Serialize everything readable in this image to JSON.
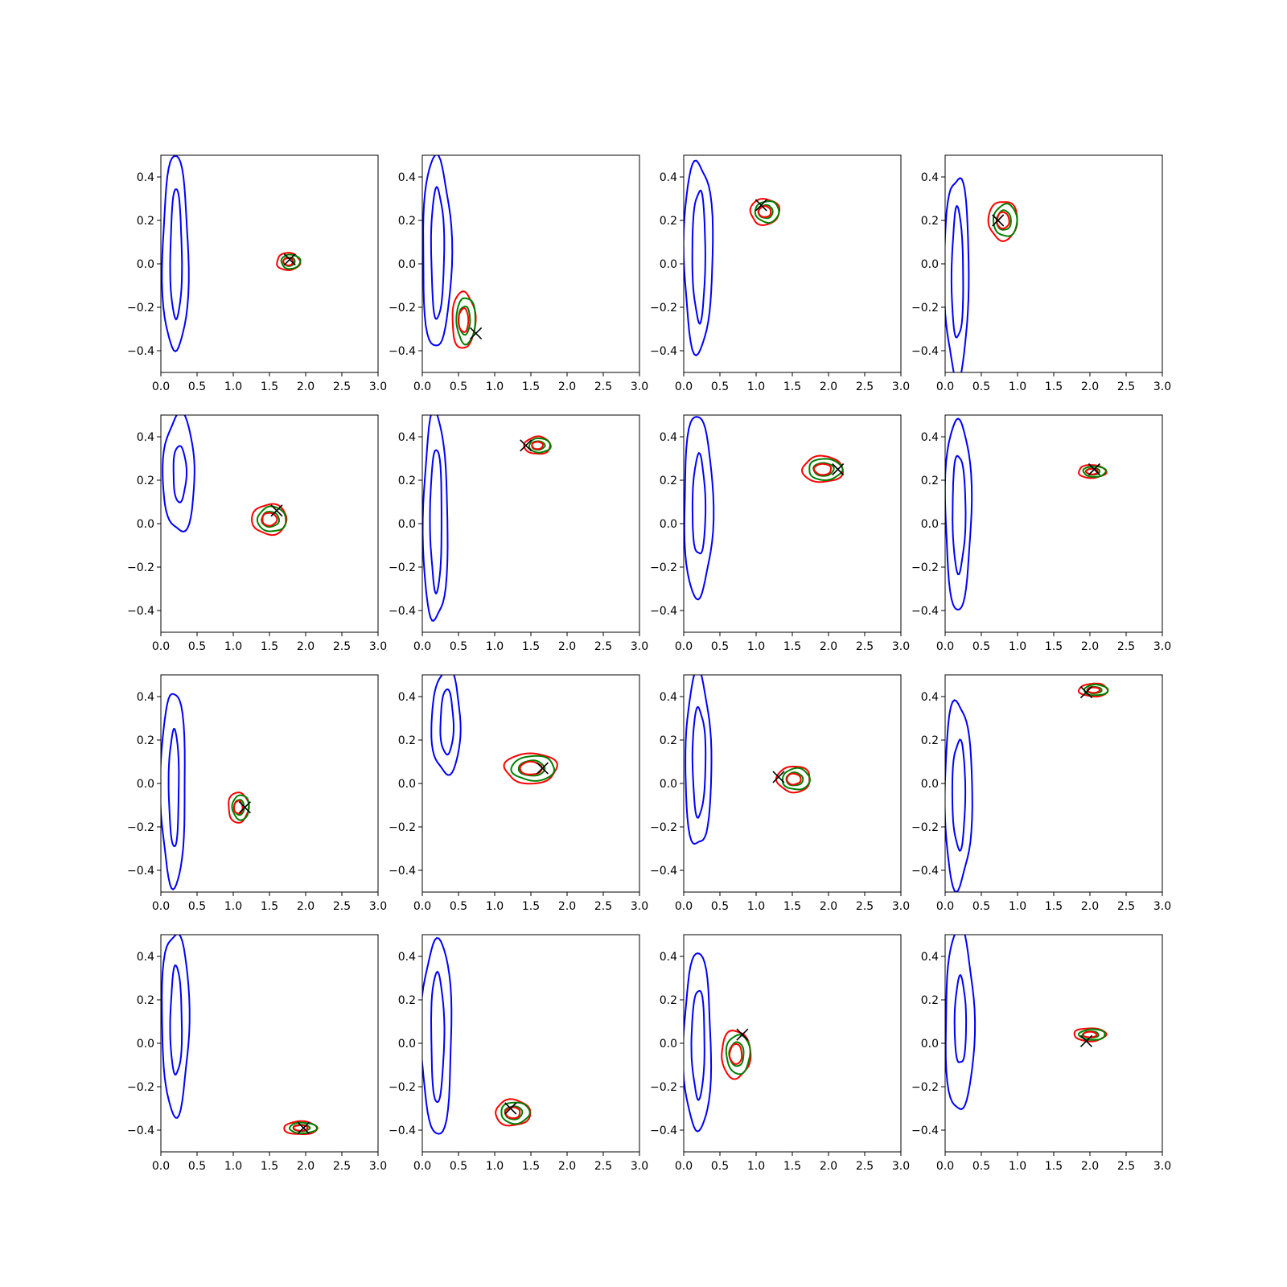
{
  "figure": {
    "rows": 4,
    "cols": 4
  },
  "colors": {
    "prior": "#0000ff",
    "posterior_a": "#008000",
    "posterior_b": "#ff0000",
    "truth_marker": "#000000",
    "axes": "#000000"
  },
  "legend": "none",
  "chart_data": [
    {
      "type": "contour",
      "xlim": [
        0,
        3
      ],
      "ylim": [
        -0.5,
        0.5
      ],
      "xticks": [
        "0.0",
        "0.5",
        "1.0",
        "1.5",
        "2.0",
        "2.5",
        "3.0"
      ],
      "yticks": [
        "0.4",
        "0.2",
        "0.0",
        "−0.2",
        "−0.4"
      ],
      "grid": false,
      "prior": {
        "cx": 0.2,
        "cy": 0.04,
        "outer": [
          0.18,
          0.45
        ],
        "inner": [
          0.08,
          0.3
        ]
      },
      "posterior": {
        "cx": 1.76,
        "cy": 0.01,
        "rx": 0.16,
        "ry": 0.04
      },
      "truth": [
        1.78,
        0.02
      ]
    },
    {
      "type": "contour",
      "xlim": [
        0,
        3
      ],
      "ylim": [
        -0.5,
        0.5
      ],
      "xticks": [
        "0.0",
        "0.5",
        "1.0",
        "1.5",
        "2.0",
        "2.5",
        "3.0"
      ],
      "yticks": [
        "0.4",
        "0.2",
        "0.0",
        "−0.2",
        "−0.4"
      ],
      "grid": false,
      "prior": {
        "cx": 0.2,
        "cy": 0.05,
        "outer": [
          0.2,
          0.44
        ],
        "inner": [
          0.09,
          0.3
        ]
      },
      "posterior": {
        "cx": 0.57,
        "cy": -0.26,
        "rx": 0.16,
        "ry": 0.13
      },
      "truth": [
        0.74,
        -0.32
      ]
    },
    {
      "type": "contour",
      "xlim": [
        0,
        3
      ],
      "ylim": [
        -0.5,
        0.5
      ],
      "xticks": [
        "0.0",
        "0.5",
        "1.0",
        "1.5",
        "2.0",
        "2.5",
        "3.0"
      ],
      "yticks": [
        "0.4",
        "0.2",
        "0.0",
        "−0.2",
        "−0.4"
      ],
      "grid": false,
      "prior": {
        "cx": 0.2,
        "cy": 0.04,
        "outer": [
          0.2,
          0.44
        ],
        "inner": [
          0.09,
          0.3
        ]
      },
      "posterior": {
        "cx": 1.12,
        "cy": 0.24,
        "rx": 0.2,
        "ry": 0.06
      },
      "truth": [
        1.07,
        0.27
      ]
    },
    {
      "type": "contour",
      "xlim": [
        0,
        3
      ],
      "ylim": [
        -0.5,
        0.5
      ],
      "xticks": [
        "0.0",
        "0.5",
        "1.0",
        "1.5",
        "2.0",
        "2.5",
        "3.0"
      ],
      "yticks": [
        "0.4",
        "0.2",
        "0.0",
        "−0.2",
        "−0.4"
      ],
      "grid": false,
      "prior": {
        "cx": 0.16,
        "cy": -0.05,
        "outer": [
          0.17,
          0.46
        ],
        "inner": [
          0.08,
          0.3
        ]
      },
      "posterior": {
        "cx": 0.8,
        "cy": 0.2,
        "rx": 0.2,
        "ry": 0.09
      },
      "truth": [
        0.73,
        0.2
      ]
    },
    {
      "type": "contour",
      "xlim": [
        0,
        3
      ],
      "ylim": [
        -0.5,
        0.5
      ],
      "xticks": [
        "0.0",
        "0.5",
        "1.0",
        "1.5",
        "2.0",
        "2.5",
        "3.0"
      ],
      "yticks": [
        "0.4",
        "0.2",
        "0.0",
        "−0.2",
        "−0.4"
      ],
      "grid": false,
      "prior": {
        "cx": 0.25,
        "cy": 0.23,
        "outer": [
          0.22,
          0.27
        ],
        "inner": [
          0.09,
          0.13
        ]
      },
      "posterior": {
        "cx": 1.5,
        "cy": 0.02,
        "rx": 0.24,
        "ry": 0.07
      },
      "truth": [
        1.6,
        0.06
      ]
    },
    {
      "type": "contour",
      "xlim": [
        0,
        3
      ],
      "ylim": [
        -0.5,
        0.5
      ],
      "xticks": [
        "0.0",
        "0.5",
        "1.0",
        "1.5",
        "2.0",
        "2.5",
        "3.0"
      ],
      "yticks": [
        "0.4",
        "0.2",
        "0.0",
        "−0.2",
        "−0.4"
      ],
      "grid": false,
      "prior": {
        "cx": 0.18,
        "cy": 0.02,
        "outer": [
          0.17,
          0.48
        ],
        "inner": [
          0.08,
          0.33
        ]
      },
      "posterior": {
        "cx": 1.59,
        "cy": 0.36,
        "rx": 0.18,
        "ry": 0.04
      },
      "truth": [
        1.43,
        0.36
      ]
    },
    {
      "type": "contour",
      "xlim": [
        0,
        3
      ],
      "ylim": [
        -0.5,
        0.5
      ],
      "xticks": [
        "0.0",
        "0.5",
        "1.0",
        "1.5",
        "2.0",
        "2.5",
        "3.0"
      ],
      "yticks": [
        "0.4",
        "0.2",
        "0.0",
        "−0.2",
        "−0.4"
      ],
      "grid": false,
      "prior": {
        "cx": 0.2,
        "cy": 0.08,
        "outer": [
          0.2,
          0.42
        ],
        "inner": [
          0.09,
          0.23
        ]
      },
      "posterior": {
        "cx": 1.92,
        "cy": 0.25,
        "rx": 0.28,
        "ry": 0.06
      },
      "truth": [
        2.13,
        0.25
      ]
    },
    {
      "type": "contour",
      "xlim": [
        0,
        3
      ],
      "ylim": [
        -0.5,
        0.5
      ],
      "xticks": [
        "0.0",
        "0.5",
        "1.0",
        "1.5",
        "2.0",
        "2.5",
        "3.0"
      ],
      "yticks": [
        "0.4",
        "0.2",
        "0.0",
        "−0.2",
        "−0.4"
      ],
      "grid": false,
      "prior": {
        "cx": 0.18,
        "cy": 0.05,
        "outer": [
          0.18,
          0.44
        ],
        "inner": [
          0.09,
          0.27
        ]
      },
      "posterior": {
        "cx": 2.03,
        "cy": 0.24,
        "rx": 0.19,
        "ry": 0.03
      },
      "truth": [
        2.06,
        0.25
      ]
    },
    {
      "type": "contour",
      "xlim": [
        0,
        3
      ],
      "ylim": [
        -0.5,
        0.5
      ],
      "xticks": [
        "0.0",
        "0.5",
        "1.0",
        "1.5",
        "2.0",
        "2.5",
        "3.0"
      ],
      "yticks": [
        "0.4",
        "0.2",
        "0.0",
        "−0.2",
        "−0.4"
      ],
      "grid": false,
      "prior": {
        "cx": 0.17,
        "cy": -0.02,
        "outer": [
          0.17,
          0.45
        ],
        "inner": [
          0.07,
          0.27
        ]
      },
      "posterior": {
        "cx": 1.07,
        "cy": -0.11,
        "rx": 0.14,
        "ry": 0.07
      },
      "truth": [
        1.16,
        -0.11
      ]
    },
    {
      "type": "contour",
      "xlim": [
        0,
        3
      ],
      "ylim": [
        -0.5,
        0.5
      ],
      "xticks": [
        "0.0",
        "0.5",
        "1.0",
        "1.5",
        "2.0",
        "2.5",
        "3.0"
      ],
      "yticks": [
        "0.4",
        "0.2",
        "0.0",
        "−0.2",
        "−0.4"
      ],
      "grid": false,
      "prior": {
        "cx": 0.33,
        "cy": 0.28,
        "outer": [
          0.2,
          0.24
        ],
        "inner": [
          0.09,
          0.15
        ]
      },
      "posterior": {
        "cx": 1.5,
        "cy": 0.07,
        "rx": 0.36,
        "ry": 0.07
      },
      "truth": [
        1.66,
        0.07
      ]
    },
    {
      "type": "contour",
      "xlim": [
        0,
        3
      ],
      "ylim": [
        -0.5,
        0.5
      ],
      "xticks": [
        "0.0",
        "0.5",
        "1.0",
        "1.5",
        "2.0",
        "2.5",
        "3.0"
      ],
      "yticks": [
        "0.4",
        "0.2",
        "0.0",
        "−0.2",
        "−0.4"
      ],
      "grid": false,
      "prior": {
        "cx": 0.2,
        "cy": 0.1,
        "outer": [
          0.18,
          0.4
        ],
        "inner": [
          0.09,
          0.25
        ]
      },
      "posterior": {
        "cx": 1.52,
        "cy": 0.02,
        "rx": 0.23,
        "ry": 0.06
      },
      "truth": [
        1.31,
        0.03
      ]
    },
    {
      "type": "contour",
      "xlim": [
        0,
        3
      ],
      "ylim": [
        -0.5,
        0.5
      ],
      "xticks": [
        "0.0",
        "0.5",
        "1.0",
        "1.5",
        "2.0",
        "2.5",
        "3.0"
      ],
      "yticks": [
        "0.4",
        "0.2",
        "0.0",
        "−0.2",
        "−0.4"
      ],
      "grid": false,
      "prior": {
        "cx": 0.18,
        "cy": -0.05,
        "outer": [
          0.19,
          0.43
        ],
        "inner": [
          0.09,
          0.25
        ]
      },
      "posterior": {
        "cx": 2.05,
        "cy": 0.43,
        "rx": 0.2,
        "ry": 0.03
      },
      "truth": [
        1.95,
        0.42
      ]
    },
    {
      "type": "contour",
      "xlim": [
        0,
        3
      ],
      "ylim": [
        -0.5,
        0.5
      ],
      "xticks": [
        "0.0",
        "0.5",
        "1.0",
        "1.5",
        "2.0",
        "2.5",
        "3.0"
      ],
      "yticks": [
        "0.4",
        "0.2",
        "0.0",
        "−0.2",
        "−0.4"
      ],
      "grid": false,
      "prior": {
        "cx": 0.2,
        "cy": 0.1,
        "outer": [
          0.19,
          0.42
        ],
        "inner": [
          0.08,
          0.25
        ]
      },
      "posterior": {
        "cx": 1.93,
        "cy": -0.39,
        "rx": 0.23,
        "ry": 0.03
      },
      "truth": [
        1.97,
        -0.39
      ]
    },
    {
      "type": "contour",
      "xlim": [
        0,
        3
      ],
      "ylim": [
        -0.5,
        0.5
      ],
      "xticks": [
        "0.0",
        "0.5",
        "1.0",
        "1.5",
        "2.0",
        "2.5",
        "3.0"
      ],
      "yticks": [
        "0.4",
        "0.2",
        "0.0",
        "−0.2",
        "−0.4"
      ],
      "grid": false,
      "prior": {
        "cx": 0.2,
        "cy": 0.03,
        "outer": [
          0.21,
          0.45
        ],
        "inner": [
          0.09,
          0.3
        ]
      },
      "posterior": {
        "cx": 1.25,
        "cy": -0.32,
        "rx": 0.24,
        "ry": 0.06
      },
      "truth": [
        1.22,
        -0.3
      ]
    },
    {
      "type": "contour",
      "xlim": [
        0,
        3
      ],
      "ylim": [
        -0.5,
        0.5
      ],
      "xticks": [
        "0.0",
        "0.5",
        "1.0",
        "1.5",
        "2.0",
        "2.5",
        "3.0"
      ],
      "yticks": [
        "0.4",
        "0.2",
        "0.0",
        "−0.2",
        "−0.4"
      ],
      "grid": false,
      "prior": {
        "cx": 0.19,
        "cy": 0.0,
        "outer": [
          0.19,
          0.41
        ],
        "inner": [
          0.09,
          0.25
        ]
      },
      "posterior": {
        "cx": 0.72,
        "cy": -0.05,
        "rx": 0.2,
        "ry": 0.11
      },
      "truth": [
        0.81,
        0.04
      ]
    },
    {
      "type": "contour",
      "xlim": [
        0,
        3
      ],
      "ylim": [
        -0.5,
        0.5
      ],
      "xticks": [
        "0.0",
        "0.5",
        "1.0",
        "1.5",
        "2.0",
        "2.5",
        "3.0"
      ],
      "yticks": [
        "0.4",
        "0.2",
        "0.0",
        "−0.2",
        "−0.4"
      ],
      "grid": false,
      "prior": {
        "cx": 0.2,
        "cy": 0.1,
        "outer": [
          0.2,
          0.42
        ],
        "inner": [
          0.08,
          0.2
        ]
      },
      "posterior": {
        "cx": 2.0,
        "cy": 0.04,
        "rx": 0.22,
        "ry": 0.03
      },
      "truth": [
        1.95,
        0.01
      ]
    }
  ]
}
